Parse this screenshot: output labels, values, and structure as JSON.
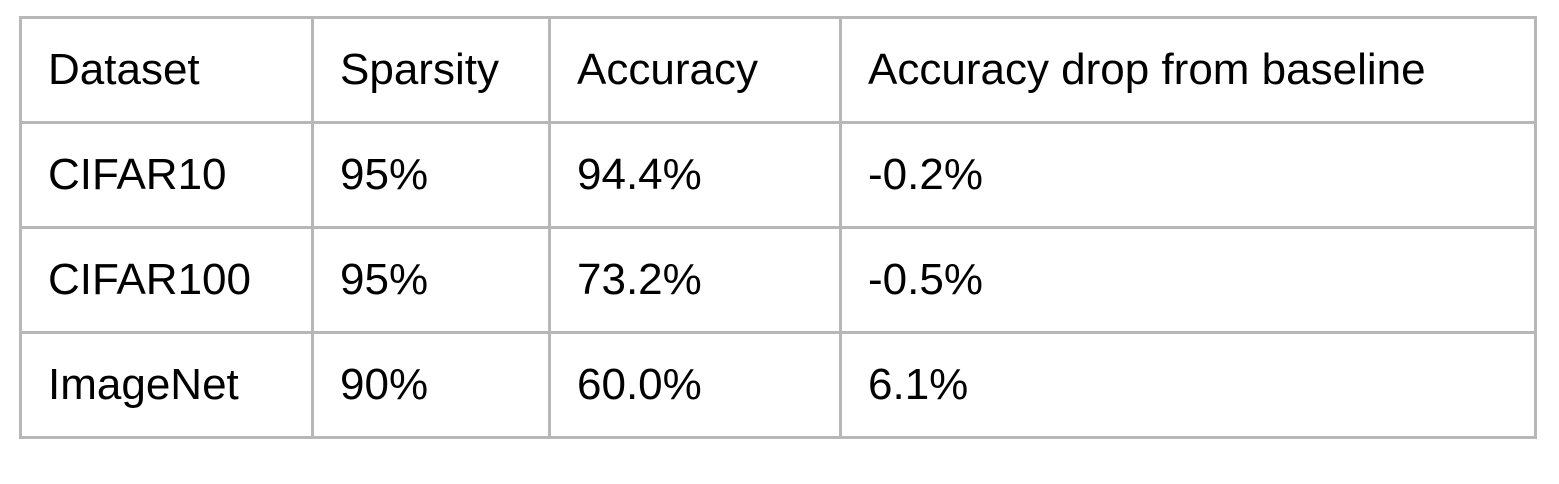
{
  "table": {
    "headers": [
      "Dataset",
      "Sparsity",
      "Accuracy",
      "Accuracy drop from baseline"
    ],
    "rows": [
      [
        "CIFAR10",
        "95%",
        "94.4%",
        "-0.2%"
      ],
      [
        "CIFAR100",
        "95%",
        "73.2%",
        "-0.5%"
      ],
      [
        "ImageNet",
        "90%",
        "60.0%",
        "6.1%"
      ]
    ]
  }
}
